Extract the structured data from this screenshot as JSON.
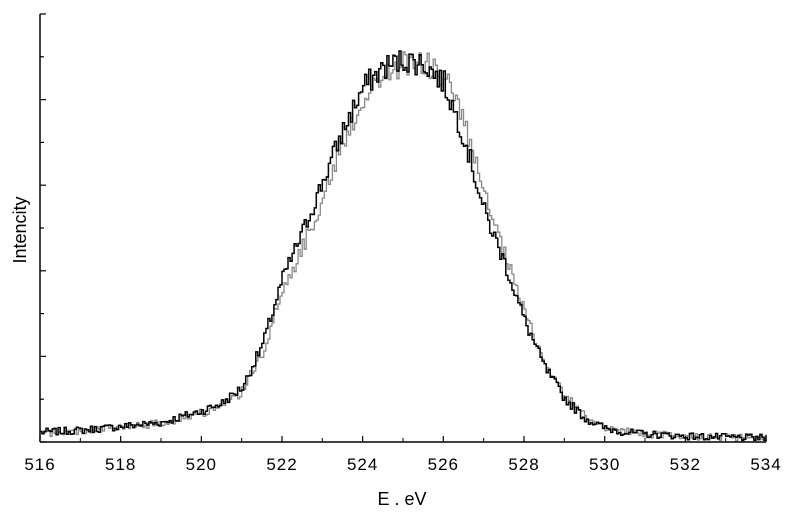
{
  "chart_data": {
    "type": "line",
    "title": "",
    "xlabel": "E . eV",
    "ylabel": "Intencity",
    "xlim": [
      516,
      534
    ],
    "ylim": [
      0,
      1.0
    ],
    "x_ticks": [
      516,
      518,
      520,
      522,
      524,
      526,
      528,
      530,
      532,
      534
    ],
    "x_tick_labels": [
      "516",
      "518",
      "520",
      "522",
      "524",
      "526",
      "528",
      "530",
      "532",
      "534"
    ],
    "y_tick_labels_shown": false,
    "grid": false,
    "legend": "none",
    "series": [
      {
        "color": "#000000",
        "x": [
          516.0,
          517.0,
          518.0,
          519.0,
          520.0,
          520.5,
          521.0,
          521.5,
          522.0,
          522.5,
          523.0,
          523.5,
          524.0,
          524.5,
          525.0,
          525.5,
          526.0,
          526.5,
          527.0,
          527.5,
          528.0,
          528.5,
          529.0,
          529.5,
          530.0,
          530.5,
          531.0,
          532.0,
          533.0,
          534.0
        ],
        "values": [
          0.025,
          0.03,
          0.04,
          0.05,
          0.08,
          0.1,
          0.14,
          0.25,
          0.42,
          0.54,
          0.67,
          0.8,
          0.91,
          0.96,
          0.98,
          0.97,
          0.92,
          0.78,
          0.59,
          0.46,
          0.31,
          0.19,
          0.11,
          0.06,
          0.035,
          0.025,
          0.02,
          0.015,
          0.012,
          0.01
        ]
      },
      {
        "color": "#888888",
        "x": [
          516.0,
          517.0,
          518.0,
          519.0,
          520.0,
          520.5,
          521.0,
          521.5,
          522.0,
          522.5,
          523.0,
          523.5,
          524.0,
          524.5,
          525.0,
          525.5,
          526.0,
          526.5,
          527.0,
          527.5,
          528.0,
          528.5,
          529.0,
          529.5,
          530.0,
          530.5,
          531.0,
          532.0,
          533.0,
          534.0
        ],
        "values": [
          0.022,
          0.028,
          0.038,
          0.048,
          0.075,
          0.09,
          0.13,
          0.23,
          0.39,
          0.5,
          0.63,
          0.77,
          0.88,
          0.94,
          0.97,
          0.97,
          0.94,
          0.82,
          0.63,
          0.48,
          0.33,
          0.2,
          0.12,
          0.065,
          0.038,
          0.027,
          0.02,
          0.015,
          0.012,
          0.01
        ]
      }
    ]
  }
}
